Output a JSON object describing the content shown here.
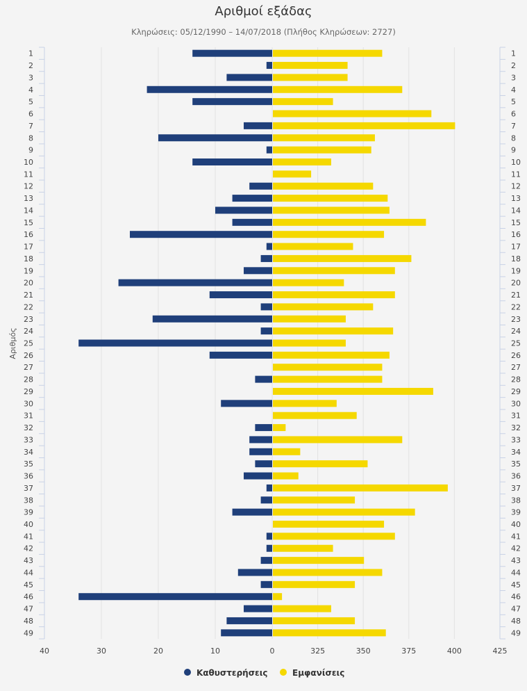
{
  "chart_data": {
    "type": "bar",
    "orientation": "horizontal",
    "title": "Αριθμοί εξάδας",
    "subtitle": "Κληρώσεις: 05/12/1990 – 14/07/2018 (Πλήθος Κληρώσεων: 2727)",
    "ylabel": "Αριθμός",
    "categories": [
      "1",
      "2",
      "3",
      "4",
      "5",
      "6",
      "7",
      "8",
      "9",
      "10",
      "11",
      "12",
      "13",
      "14",
      "15",
      "16",
      "17",
      "18",
      "19",
      "20",
      "21",
      "22",
      "23",
      "24",
      "25",
      "26",
      "27",
      "28",
      "29",
      "30",
      "31",
      "32",
      "33",
      "34",
      "35",
      "36",
      "37",
      "38",
      "39",
      "40",
      "41",
      "42",
      "43",
      "44",
      "45",
      "46",
      "47",
      "48",
      "49"
    ],
    "left_axis": {
      "ticks": [
        40,
        30,
        20,
        10,
        0
      ],
      "range": [
        40,
        0
      ],
      "tick_labels": [
        "40",
        "30",
        "20",
        "10",
        "0"
      ]
    },
    "right_axis": {
      "ticks": [
        325,
        350,
        375,
        400,
        425
      ],
      "range": [
        300,
        425
      ],
      "tick_labels": [
        "325",
        "350",
        "375",
        "400",
        "425"
      ]
    },
    "series": [
      {
        "name": "Καθυστερήσεις",
        "color": "#1f3f7a",
        "values": [
          14,
          1,
          8,
          22,
          14,
          0,
          5,
          20,
          1,
          14,
          0,
          4,
          7,
          10,
          7,
          25,
          1,
          2,
          5,
          27,
          11,
          2,
          21,
          2,
          34,
          11,
          0,
          3,
          0,
          9,
          0,
          3,
          4,
          4,
          3,
          5,
          1,
          2,
          7,
          0,
          1,
          1,
          2,
          6,
          2,
          34,
          5,
          8,
          9
        ]
      },
      {
        "name": "Εμφανίσεις",
        "color": "#f5d800",
        "values": [
          360,
          341,
          341,
          371,
          333,
          387,
          400,
          356,
          354,
          332,
          321,
          355,
          363,
          364,
          384,
          361,
          344,
          376,
          367,
          339,
          367,
          355,
          340,
          366,
          340,
          364,
          360,
          360,
          388,
          335,
          346,
          307,
          371,
          315,
          352,
          314,
          396,
          345,
          378,
          361,
          367,
          333,
          350,
          360,
          345,
          305,
          332,
          345,
          362
        ]
      }
    ]
  }
}
